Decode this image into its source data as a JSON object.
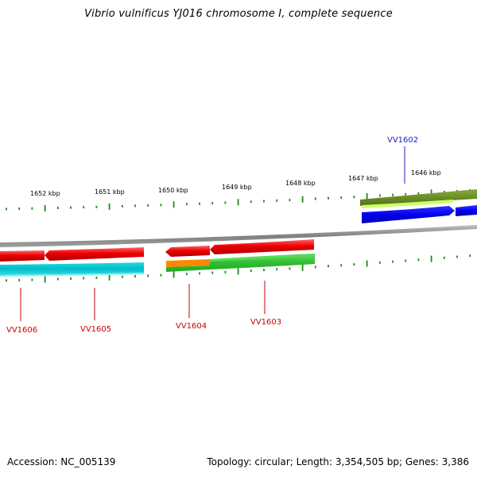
{
  "title": "Vibrio vulnificus YJ016 chromosome I, complete sequence",
  "footer": {
    "accession": "Accession: NC_005139",
    "summary": "Topology: circular; Length: 3,354,505 bp; Genes: 3,386"
  },
  "scale_labels": [
    "1652 kbp",
    "1651 kbp",
    "1650 kbp",
    "1649 kbp",
    "1648 kbp",
    "1647 kbp",
    "1646 kbp"
  ],
  "genes": [
    {
      "label": "VV1602",
      "strand": "+",
      "color": "#0000ee",
      "label_color": "#2222bb"
    },
    {
      "label": "VV1603",
      "strand": "-",
      "color": "#ee0000",
      "label_color": "#cc0000"
    },
    {
      "label": "VV1604",
      "strand": "-",
      "color": "#ee0000",
      "label_color": "#cc0000"
    },
    {
      "label": "VV1605",
      "strand": "-",
      "color": "#ee0000",
      "label_color": "#cc0000"
    },
    {
      "label": "VV1606",
      "strand": "-",
      "color": "#ee0000",
      "label_color": "#cc0000"
    }
  ],
  "colors": {
    "backbone": "#8a8a8a",
    "tick": "#1a8a1a",
    "cog_green": "#33cc33",
    "cog_cyan": "#00cccc",
    "cog_orange": "#ff8800",
    "cog_olive": "#6b8e23",
    "cog_lime": "#ccff66"
  }
}
